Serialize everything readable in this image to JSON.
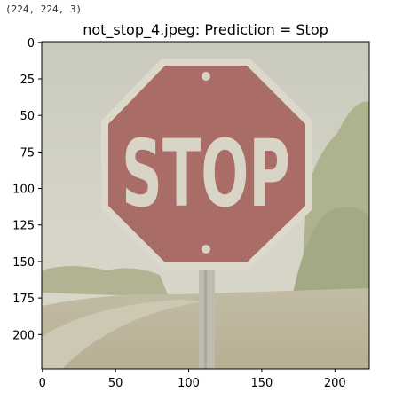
{
  "output": {
    "shape_text": "(224, 224, 3)"
  },
  "plot": {
    "title": "not_stop_4.jpeg: Prediction = Stop",
    "image_size": [
      224,
      224
    ],
    "x_ticks": [
      0,
      50,
      100,
      150,
      200
    ],
    "y_ticks": [
      0,
      25,
      50,
      75,
      100,
      125,
      150,
      175,
      200
    ],
    "sign_text": "STOP",
    "colors": {
      "sky": "#cfcfc2",
      "sign_red": "#a96c66",
      "sign_border": "#dcd8cc",
      "foliage": "#a8ad88",
      "ground": "#b9b196"
    }
  }
}
